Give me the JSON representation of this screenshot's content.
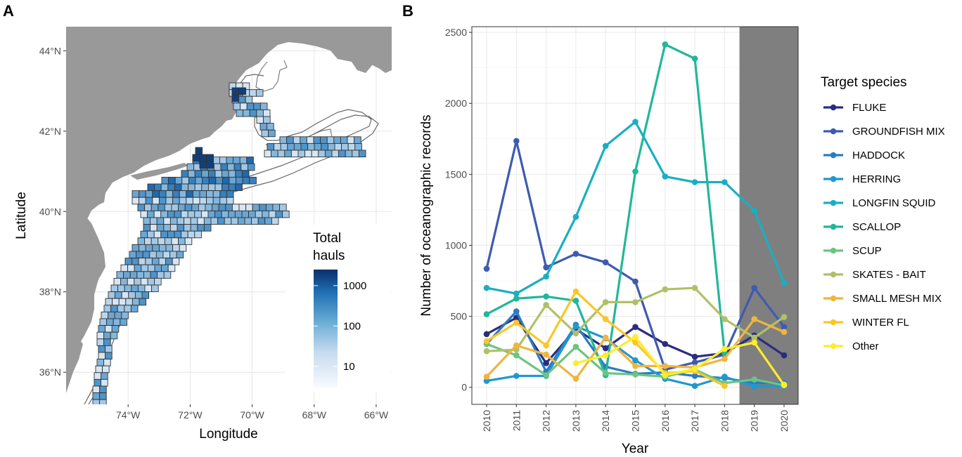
{
  "panel_a_label": "A",
  "panel_b_label": "B",
  "chart_data": [
    {
      "type": "heatmap",
      "subtype": "map",
      "xlabel": "Longitude",
      "ylabel": "Latitude",
      "xlim": [
        -76,
        -65.5
      ],
      "ylim": [
        35.2,
        44.6
      ],
      "x_ticks": [
        "74°W",
        "72°W",
        "70°W",
        "68°W",
        "66°W"
      ],
      "y_ticks": [
        "36°N",
        "38°N",
        "40°N",
        "42°N",
        "44°N"
      ],
      "x_tick_values": [
        -74,
        -72,
        -70,
        -68,
        -66
      ],
      "y_tick_values": [
        36,
        38,
        40,
        42,
        44
      ],
      "legend_title_lines": [
        "Total",
        "hauls"
      ],
      "legend_labels": [
        "1000",
        "100",
        "10"
      ],
      "legend_values": [
        1000,
        100,
        10
      ],
      "colors": {
        "land": "#999999",
        "low": "#f7fbff",
        "high": "#08306b"
      }
    },
    {
      "type": "line",
      "xlabel": "Year",
      "ylabel": "Number of oceanographic records",
      "ylim": [
        -120,
        2540
      ],
      "y_ticks": [
        0,
        500,
        1000,
        1500,
        2000,
        2500
      ],
      "categories": [
        "2010",
        "2011",
        "2012",
        "2013",
        "2014",
        "2015",
        "2016",
        "2017",
        "2018",
        "2019",
        "2020"
      ],
      "shaded_years": [
        "2019",
        "2020"
      ],
      "legend_title": "Target species",
      "series": [
        {
          "name": "FLUKE",
          "color": "#2b2c7f",
          "values": [
            375,
            490,
            170,
            410,
            275,
            425,
            305,
            215,
            240,
            365,
            225
          ]
        },
        {
          "name": "GROUNDFISH MIX",
          "color": "#3d5bb0",
          "values": [
            835,
            1735,
            845,
            940,
            880,
            745,
            125,
            175,
            230,
            700,
            425
          ]
        },
        {
          "name": "HADDOCK",
          "color": "#2a7bc3",
          "values": [
            305,
            535,
            110,
            440,
            145,
            95,
            105,
            80,
            65,
            30,
            30
          ]
        },
        {
          "name": "HERRING",
          "color": "#1f98d0",
          "values": [
            45,
            80,
            80,
            430,
            345,
            190,
            60,
            10,
            75,
            5,
            10
          ]
        },
        {
          "name": "LONGFIN SQUID",
          "color": "#1aaec3",
          "values": [
            700,
            660,
            780,
            1200,
            1700,
            1870,
            1485,
            1445,
            1445,
            1245,
            735
          ]
        },
        {
          "name": "SCALLOP",
          "color": "#21b79a",
          "values": [
            515,
            625,
            640,
            610,
            85,
            1520,
            2415,
            2315,
            240,
            null,
            null
          ]
        },
        {
          "name": "SCUP",
          "color": "#6cc481",
          "values": [
            305,
            225,
            85,
            285,
            100,
            90,
            75,
            125,
            30,
            55,
            15
          ]
        },
        {
          "name": "SKATES - BAIT",
          "color": "#b0c068",
          "values": [
            255,
            265,
            580,
            380,
            600,
            600,
            690,
            700,
            480,
            350,
            495
          ]
        },
        {
          "name": "SMALL MESH MIX",
          "color": "#efb53f",
          "values": [
            75,
            295,
            230,
            60,
            350,
            150,
            150,
            140,
            200,
            480,
            390
          ]
        },
        {
          "name": "WINTER FL",
          "color": "#fbc62a",
          "values": [
            325,
            455,
            295,
            675,
            480,
            315,
            100,
            115,
            10,
            null,
            20
          ]
        },
        {
          "name": "Other",
          "color": "#fcee2b",
          "values": [
            null,
            null,
            null,
            170,
            225,
            355,
            85,
            130,
            270,
            315,
            15
          ]
        }
      ]
    }
  ]
}
